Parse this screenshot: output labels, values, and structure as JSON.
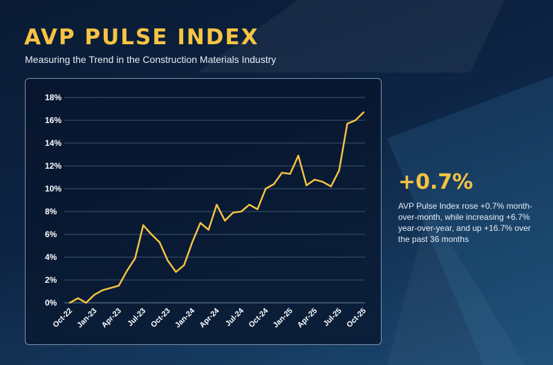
{
  "header": {
    "title": "AVP PULSE INDEX",
    "subtitle": "Measuring the Trend in the Construction Materials Industry"
  },
  "callout": {
    "value": "+0.7%",
    "text": "AVP Pulse Index rose +0.7% month-over-month, while increasing +6.7% year-over-year, and up +16.7% over the past 36 months"
  },
  "colors": {
    "line": "#f6c343",
    "grid": "#3a5576",
    "text": "#ffffff"
  },
  "chart_data": {
    "type": "line",
    "title": "",
    "xlabel": "",
    "ylabel": "",
    "ylim": [
      0,
      18
    ],
    "yticks": [
      "0%",
      "2%",
      "4%",
      "6%",
      "8%",
      "10%",
      "12%",
      "14%",
      "16%",
      "18%"
    ],
    "ytick_values": [
      0,
      2,
      4,
      6,
      8,
      10,
      12,
      14,
      16,
      18
    ],
    "xtick_labels": [
      "Oct-22",
      "Jan-23",
      "Apr-23",
      "Jul-23",
      "Oct-23",
      "Jan-24",
      "Apr-24",
      "Jul-24",
      "Oct-24",
      "Jan-25",
      "Apr-25",
      "Jul-25",
      "Oct-25"
    ],
    "grid": true,
    "series": [
      {
        "name": "AVP Pulse Index",
        "values": [
          0,
          0.4,
          0.0,
          0.7,
          1.1,
          1.3,
          1.5,
          2.8,
          3.9,
          6.8,
          6.0,
          5.3,
          3.7,
          2.7,
          3.3,
          5.3,
          7.0,
          6.4,
          8.6,
          7.2,
          7.9,
          8.0,
          8.6,
          8.2,
          10.0,
          10.4,
          11.4,
          11.3,
          12.9,
          10.3,
          10.8,
          10.6,
          10.2,
          11.6,
          15.7,
          16.0,
          16.7
        ]
      }
    ]
  }
}
